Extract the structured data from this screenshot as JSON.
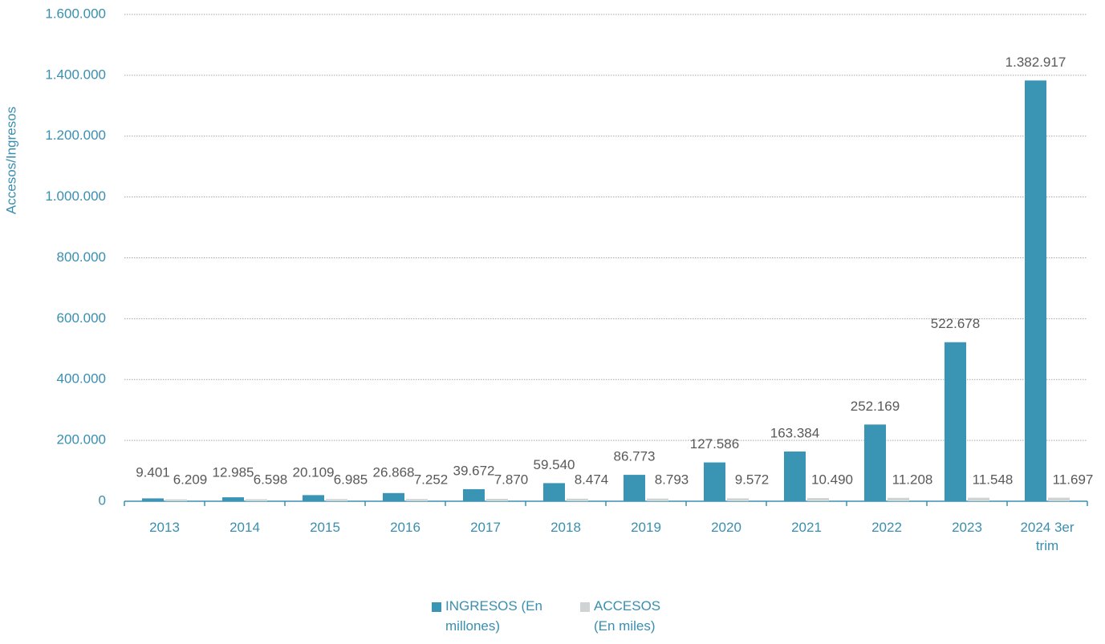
{
  "chart_data": {
    "type": "bar",
    "y_label": "Accesos/Ingresos",
    "categories": [
      "2013",
      "2014",
      "2015",
      "2016",
      "2017",
      "2018",
      "2019",
      "2020",
      "2021",
      "2022",
      "2023",
      "2024 3er trim"
    ],
    "series": [
      {
        "name": "INGRESOS (En millones)",
        "color": "#3a95b5",
        "values": [
          9401,
          12985,
          20109,
          26868,
          39672,
          59540,
          86773,
          127586,
          163384,
          252169,
          522678,
          1382917
        ],
        "value_labels": [
          "9.401",
          "12.985",
          "20.109",
          "26.868",
          "39.672",
          "59.540",
          "86.773",
          "127.586",
          "163.384",
          "252.169",
          "522.678",
          "1.382.917"
        ]
      },
      {
        "name": "ACCESOS (En miles)",
        "color": "#d0d3d4",
        "values": [
          6209,
          6598,
          6985,
          7252,
          7870,
          8474,
          8793,
          9572,
          10490,
          11208,
          11548,
          11697
        ],
        "value_labels": [
          "6.209",
          "6.598",
          "6.985",
          "7.252",
          "7.870",
          "8.474",
          "8.793",
          "9.572",
          "10.490",
          "11.208",
          "11.548",
          "11.697"
        ]
      }
    ],
    "ylim": [
      0,
      1600000
    ],
    "yticks": [
      0,
      {
        "value": 200000,
        "label": "200.000"
      },
      {
        "value": 400000,
        "label": "400.000"
      },
      {
        "value": 600000,
        "label": "600.000"
      },
      {
        "value": 800000,
        "label": "800.000"
      },
      {
        "value": 1000000,
        "label": "1.000.000"
      },
      {
        "value": 1200000,
        "label": "1.200.000"
      },
      {
        "value": 1400000,
        "label": "1.400.000"
      },
      {
        "value": 1600000,
        "label": "1.600.000"
      }
    ],
    "grid": true
  }
}
